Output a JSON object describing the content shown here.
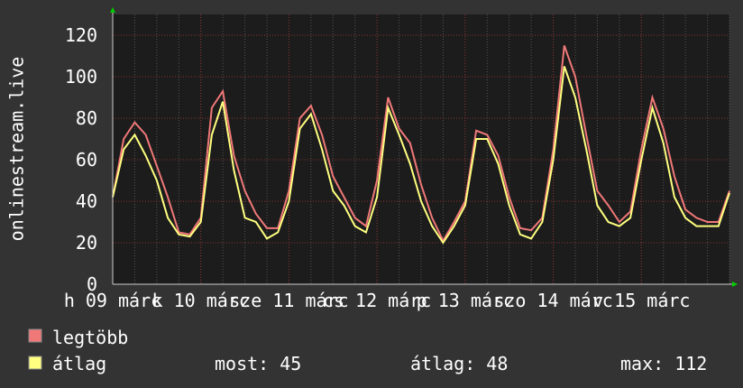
{
  "chart_data": {
    "type": "line",
    "y_label": "onlinestream.live",
    "categories": [
      "h 09 márc",
      null,
      null,
      null,
      null,
      null,
      null,
      null,
      "k 10 márc",
      null,
      null,
      null,
      null,
      null,
      null,
      null,
      "sze 11 márc",
      null,
      null,
      null,
      null,
      null,
      null,
      null,
      "cs 12 márc",
      null,
      null,
      null,
      null,
      null,
      null,
      null,
      "p 13 márc",
      null,
      null,
      null,
      null,
      null,
      null,
      null,
      "szo 14 márc",
      null,
      null,
      null,
      null,
      null,
      null,
      null,
      "v 15 márc",
      null,
      null,
      null,
      null,
      null,
      null,
      null,
      null
    ],
    "series": [
      {
        "name": "legtöbb",
        "color": "#f07878",
        "values": [
          42,
          70,
          78,
          72,
          57,
          42,
          25,
          24,
          32,
          85,
          93,
          62,
          45,
          34,
          27,
          27,
          45,
          80,
          86,
          72,
          52,
          42,
          32,
          28,
          50,
          90,
          75,
          68,
          48,
          32,
          21,
          30,
          40,
          74,
          72,
          62,
          42,
          27,
          26,
          32,
          65,
          115,
          100,
          72,
          45,
          38,
          30,
          35,
          65,
          90,
          75,
          52,
          36,
          32,
          30,
          30,
          45
        ]
      },
      {
        "name": "átlag",
        "color": "#ffff80",
        "values": [
          42,
          65,
          72,
          62,
          50,
          32,
          24,
          23,
          30,
          72,
          88,
          55,
          32,
          30,
          22,
          25,
          40,
          75,
          82,
          65,
          45,
          38,
          28,
          25,
          42,
          85,
          72,
          58,
          40,
          28,
          20,
          28,
          38,
          70,
          70,
          58,
          38,
          24,
          22,
          30,
          60,
          105,
          90,
          65,
          38,
          30,
          28,
          32,
          60,
          85,
          68,
          42,
          32,
          28,
          28,
          28,
          44
        ]
      }
    ],
    "stats": [
      "most: 45",
      "átlag: 48",
      "max: 112"
    ],
    "ylim": [
      0,
      130
    ],
    "yticks": [
      0,
      20,
      40,
      60,
      80,
      100,
      120
    ],
    "grid": true
  }
}
